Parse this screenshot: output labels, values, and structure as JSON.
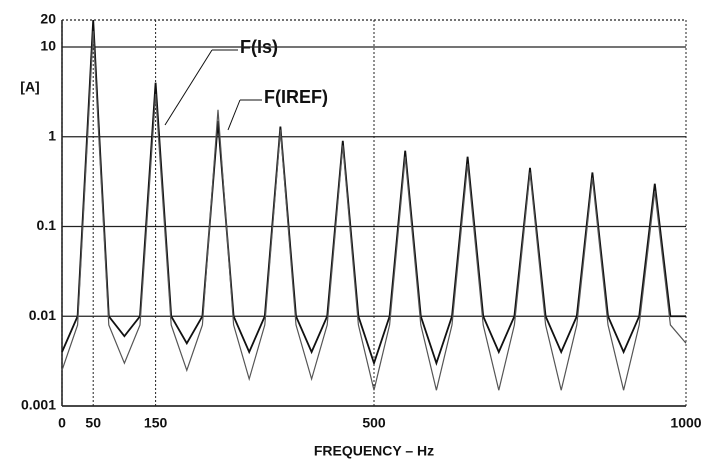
{
  "chart_data": {
    "type": "line",
    "y_label": "[A]",
    "x_label": "FREQUENCY – Hz",
    "x": [
      0,
      25,
      50,
      75,
      100,
      125,
      150,
      175,
      200,
      225,
      250,
      275,
      300,
      325,
      350,
      375,
      400,
      425,
      450,
      475,
      500,
      525,
      550,
      575,
      600,
      625,
      650,
      675,
      700,
      725,
      750,
      775,
      800,
      825,
      850,
      875,
      900,
      925,
      950,
      975,
      1000
    ],
    "series": [
      {
        "name": "F(Is)",
        "color": "#111111",
        "values": [
          0.004,
          0.01,
          20,
          0.01,
          0.006,
          0.01,
          4,
          0.01,
          0.005,
          0.01,
          1.5,
          0.01,
          0.004,
          0.01,
          1.3,
          0.01,
          0.004,
          0.01,
          0.9,
          0.01,
          0.003,
          0.01,
          0.7,
          0.01,
          0.003,
          0.01,
          0.6,
          0.01,
          0.004,
          0.01,
          0.45,
          0.01,
          0.004,
          0.01,
          0.4,
          0.01,
          0.004,
          0.01,
          0.3,
          0.01,
          0.01
        ]
      },
      {
        "name": "F(IREF)",
        "color": "#555555",
        "values": [
          0.0025,
          0.008,
          15,
          0.008,
          0.003,
          0.008,
          3,
          0.008,
          0.0025,
          0.008,
          2,
          0.008,
          0.002,
          0.008,
          1.2,
          0.008,
          0.002,
          0.008,
          0.8,
          0.008,
          0.0015,
          0.008,
          0.6,
          0.008,
          0.0015,
          0.008,
          0.5,
          0.008,
          0.0015,
          0.008,
          0.4,
          0.008,
          0.0015,
          0.008,
          0.35,
          0.008,
          0.0015,
          0.008,
          0.25,
          0.008,
          0.005
        ]
      }
    ],
    "xlim": [
      0,
      1000
    ],
    "xticks": [
      0,
      50,
      150,
      500,
      1000
    ],
    "ylim": [
      0.001,
      20
    ],
    "yticks": [
      0.001,
      0.01,
      0.1,
      1,
      10,
      20
    ],
    "log_y": true,
    "grid": true
  }
}
